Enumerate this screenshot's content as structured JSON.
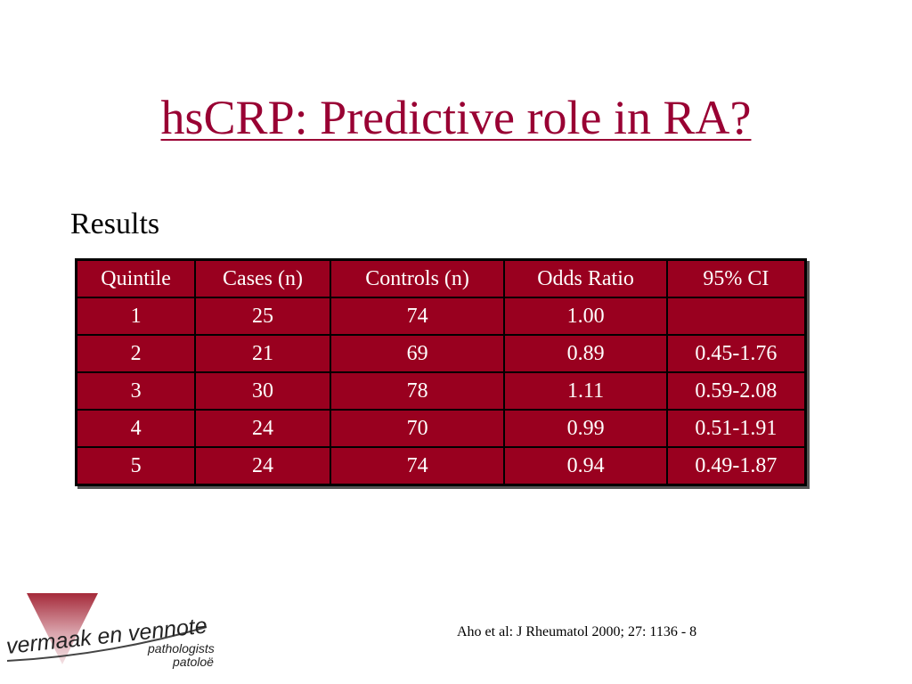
{
  "slide": {
    "title": "hsCRP: Predictive role in RA?",
    "subtitle": "Results",
    "citation": "Aho et al: J Rheumatol 2000; 27: 1136 - 8"
  },
  "table": {
    "headers": [
      "Quintile",
      "Cases (n)",
      "Controls (n)",
      "Odds Ratio",
      "95% CI"
    ],
    "rows": [
      [
        "1",
        "25",
        "74",
        "1.00",
        ""
      ],
      [
        "2",
        "21",
        "69",
        "0.89",
        "0.45-1.76"
      ],
      [
        "3",
        "30",
        "78",
        "1.11",
        "0.59-2.08"
      ],
      [
        "4",
        "24",
        "70",
        "0.99",
        "0.51-1.91"
      ],
      [
        "5",
        "24",
        "74",
        "0.94",
        "0.49-1.87"
      ]
    ]
  },
  "logo": {
    "name": "vermaak en vennote",
    "line1": "pathologists",
    "line2": "patoloë",
    "colors": {
      "triangle": "#a52a3a",
      "text": "#222222"
    }
  },
  "colors": {
    "title": "#990033",
    "table_fill": "#99001f",
    "table_border": "#000000"
  }
}
